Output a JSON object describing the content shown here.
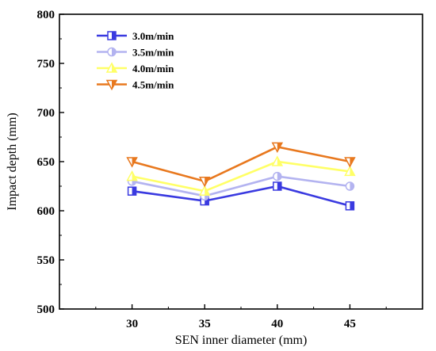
{
  "chart_data": {
    "type": "line",
    "xlabel": "SEN inner diameter (mm)",
    "ylabel": "Impact depth (mm)",
    "x": [
      30,
      35,
      40,
      45
    ],
    "xlim": [
      25,
      50
    ],
    "ylim": [
      500,
      800
    ],
    "xticks": [
      "30",
      "35",
      "40",
      "45"
    ],
    "yticks": [
      "500",
      "550",
      "600",
      "650",
      "700",
      "750",
      "800"
    ],
    "grid": false,
    "legend_position": "top-left",
    "series": [
      {
        "name": "3.0m/min",
        "values": [
          620,
          610,
          625,
          605
        ],
        "color": "#3a3ae0",
        "marker": "half-square"
      },
      {
        "name": "3.5m/min",
        "values": [
          630,
          615,
          635,
          625
        ],
        "color": "#b3b3f0",
        "marker": "half-circle"
      },
      {
        "name": "4.0m/min",
        "values": [
          635,
          620,
          650,
          640
        ],
        "color": "#ffff66",
        "marker": "triangle-up"
      },
      {
        "name": "4.5m/min",
        "values": [
          650,
          630,
          665,
          650
        ],
        "color": "#e8781e",
        "marker": "triangle-down"
      }
    ]
  }
}
